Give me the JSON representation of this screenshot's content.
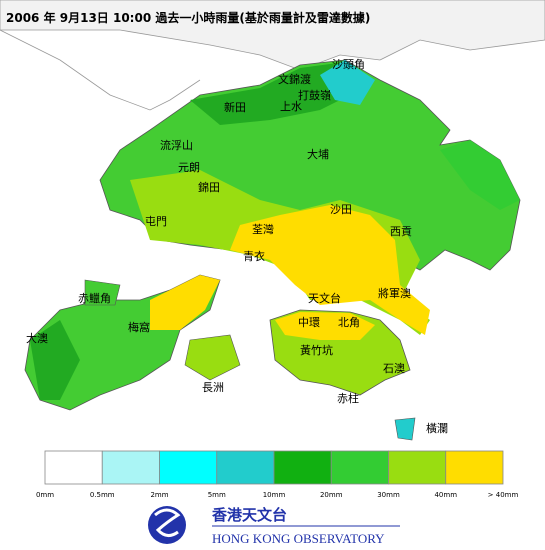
{
  "header": {
    "title": "2006 年  9月13日  10:00   過去一小時雨量(基於雨量計及雷達數據)"
  },
  "places": [
    "沙頭角",
    "文錦渡",
    "打鼓嶺",
    "上水",
    "新田",
    "流浮山",
    "元朗",
    "大埔",
    "錦田",
    "屯門",
    "沙田",
    "荃灣",
    "西貢",
    "青衣",
    "赤鱲角",
    "天文台",
    "將軍澳",
    "大澳",
    "梅窩",
    "中環",
    "北角",
    "黃竹坑",
    "石澳",
    "長洲",
    "赤柱",
    "橫瀾"
  ],
  "legend": {
    "colors": [
      "#ffffff",
      "#aaf5f5",
      "#00ffff",
      "#22cccc",
      "#11b011",
      "#33cc33",
      "#99dd11",
      "#ffdd00"
    ],
    "labels": [
      "0mm",
      "0.5mm",
      "2mm",
      "5mm",
      "10mm",
      "20mm",
      "30mm",
      "40mm",
      "> 40mm"
    ]
  },
  "logo": {
    "chinese": "香港天文台",
    "english": "HONG KONG OBSERVATORY"
  }
}
